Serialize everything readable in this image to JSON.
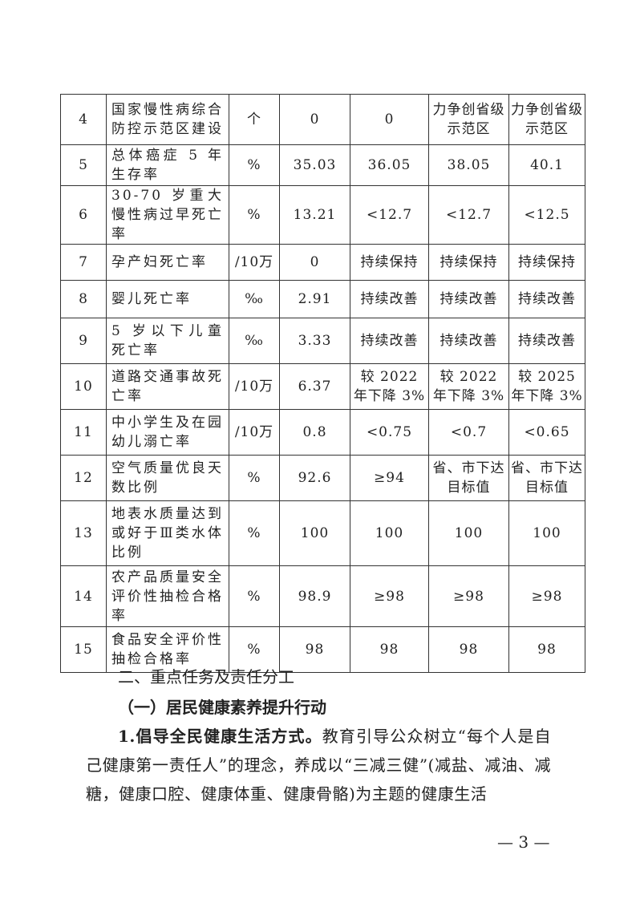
{
  "table": {
    "rows": [
      [
        "4",
        "国家慢性病综合防控示范区建设",
        "个",
        "0",
        "0",
        "力争创省级示范区",
        "力争创省级示范区"
      ],
      [
        "5",
        "总体癌症 5 年生存率",
        "%",
        "35.03",
        "36.05",
        "38.05",
        "40.1"
      ],
      [
        "6",
        "30-70 岁重大慢性病过早死亡率",
        "%",
        "13.21",
        "<12.7",
        "<12.7",
        "<12.5"
      ],
      [
        "7",
        "孕产妇死亡率",
        "/10万",
        "0",
        "持续保持",
        "持续保持",
        "持续保持"
      ],
      [
        "8",
        "婴儿死亡率",
        "‰",
        "2.91",
        "持续改善",
        "持续改善",
        "持续改善"
      ],
      [
        "9",
        "5 岁以下儿童死亡率",
        "‰",
        "3.33",
        "持续改善",
        "持续改善",
        "持续改善"
      ],
      [
        "10",
        "道路交通事故死亡率",
        "/10万",
        "6.37",
        "较 2022 年下降 3%",
        "较 2022 年下降 3%",
        "较 2025 年下降 3%"
      ],
      [
        "11",
        "中小学生及在园幼儿溺亡率",
        "/10万",
        "0.8",
        "<0.75",
        "<0.7",
        "<0.65"
      ],
      [
        "12",
        "空气质量优良天数比例",
        "%",
        "92.6",
        "≥94",
        "省、市下达目标值",
        "省、市下达目标值"
      ],
      [
        "13",
        "地表水质量达到或好于Ⅲ类水体比例",
        "%",
        "100",
        "100",
        "100",
        "100"
      ],
      [
        "14",
        "农产品质量安全评价性抽检合格率",
        "%",
        "98.9",
        "≥98",
        "≥98",
        "≥98"
      ],
      [
        "15",
        "食品安全评价性抽检合格率",
        "%",
        "98",
        "98",
        "98",
        "98"
      ]
    ]
  },
  "section_heading": "二、重点任务及责任分工",
  "subsection_heading": "（一）居民健康素养提升行动",
  "paragraph": {
    "lead": "1.倡导全民健康生活方式。",
    "body": "教育引导公众树立“每个人是自己健康第一责任人”的理念，养成以“三减三健”(减盐、减油、减糖，健康口腔、健康体重、健康骨骼)为主题的健康生活"
  },
  "page_number": "— 3 —"
}
